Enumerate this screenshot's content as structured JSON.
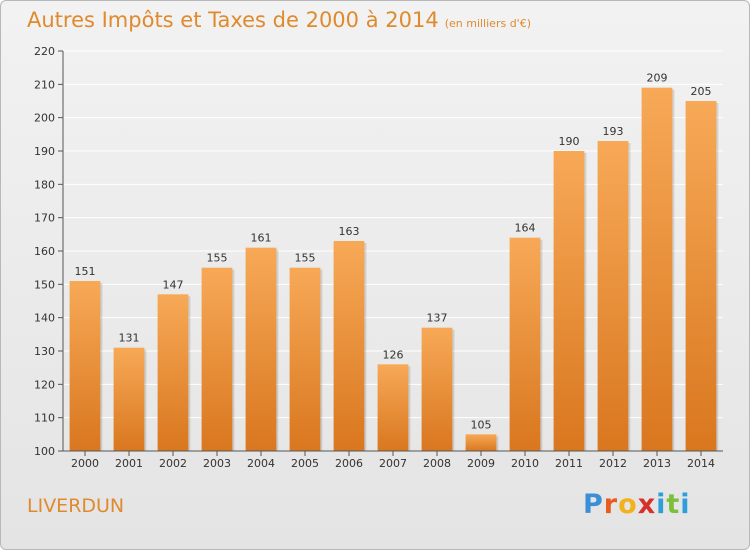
{
  "header": {
    "title": "Autres Impôts et Taxes de 2000 à 2014",
    "subtitle": "(en milliers d'€)"
  },
  "place_name": "LIVERDUN",
  "logo": {
    "text": "Proxiti",
    "letter_colors": [
      "#3a8fd6",
      "#e85a1e",
      "#f2b21b",
      "#d6302a",
      "#2e9fd8",
      "#7bbf3c",
      "#2e9fd8"
    ]
  },
  "colors": {
    "accent": "#e08a2e",
    "bar_light": "#f7a957",
    "bar_dark": "#d9771f",
    "grid": "#ffffff"
  },
  "chart_data": {
    "type": "bar",
    "title": "Autres Impôts et Taxes de 2000 à 2014",
    "subtitle": "(en milliers d'€)",
    "xlabel": "",
    "ylabel": "",
    "ylim": [
      100,
      220
    ],
    "yticks": [
      100,
      110,
      120,
      130,
      140,
      150,
      160,
      170,
      180,
      190,
      200,
      210,
      220
    ],
    "grid": true,
    "categories": [
      "2000",
      "2001",
      "2002",
      "2003",
      "2004",
      "2005",
      "2006",
      "2007",
      "2008",
      "2009",
      "2010",
      "2011",
      "2012",
      "2013",
      "2014"
    ],
    "values": [
      151,
      131,
      147,
      155,
      161,
      155,
      163,
      126,
      137,
      105,
      164,
      190,
      193,
      209,
      205
    ]
  }
}
